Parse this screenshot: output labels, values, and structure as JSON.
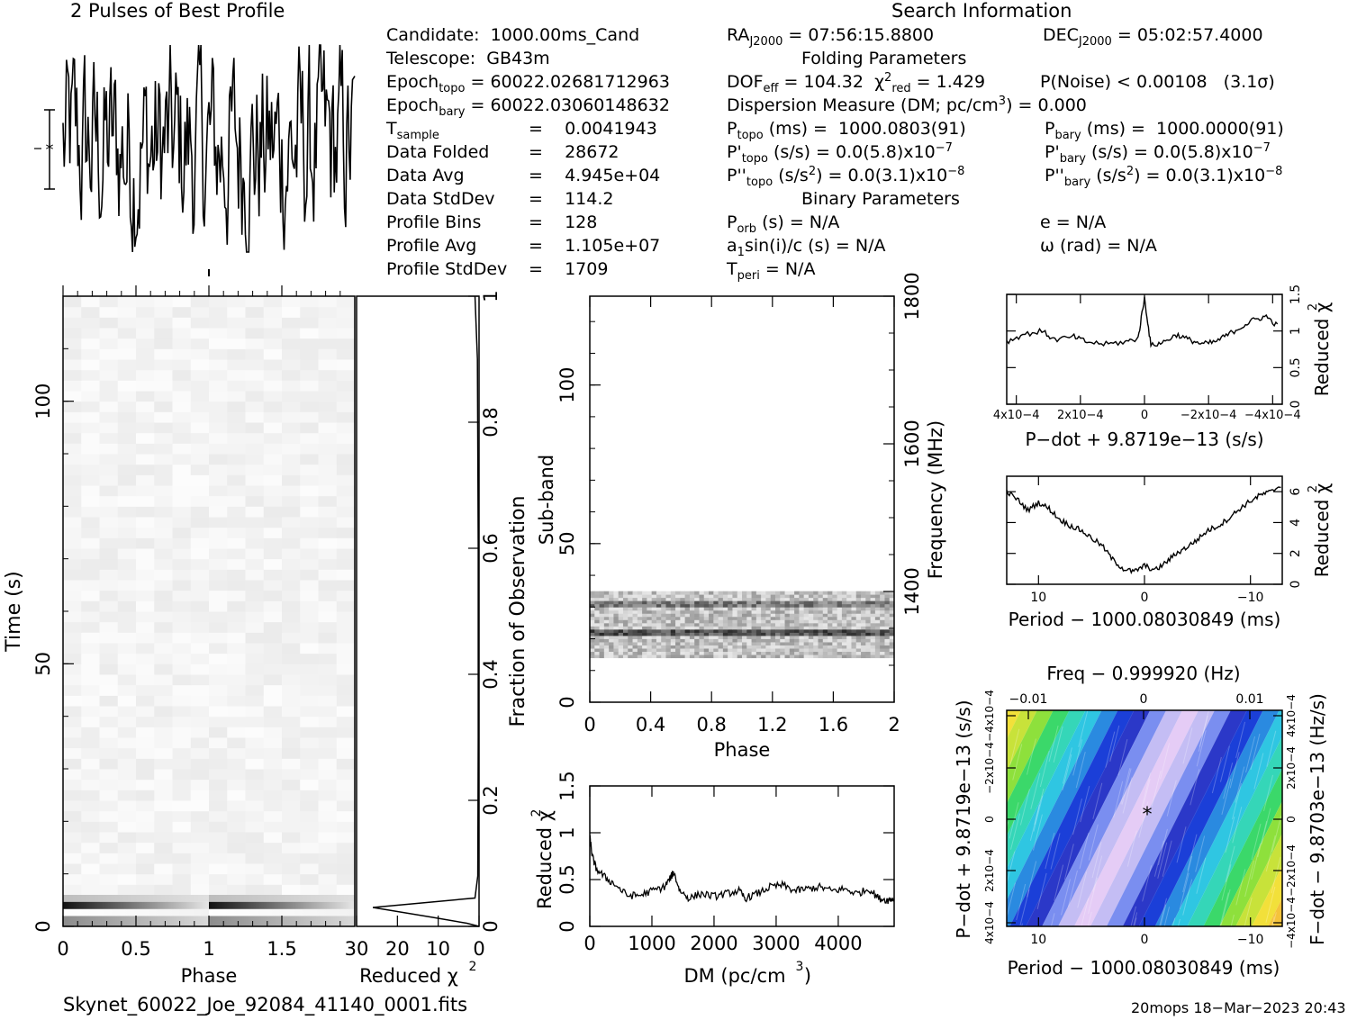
{
  "headers": {
    "best_profile": "2 Pulses of Best Profile",
    "search_information": "Search Information",
    "folding_parameters": "Folding Parameters",
    "binary_parameters": "Binary Parameters"
  },
  "candidate_info": {
    "candidate_label": "Candidate:",
    "candidate_value": "1000.00ms_Cand",
    "telescope_label": "Telescope:",
    "telescope_value": "GB43m",
    "epoch_topo_label": "Epoch",
    "epoch_topo_sub": "topo",
    "epoch_topo_value": "= 60022.02681712963",
    "epoch_bary_label": "Epoch",
    "epoch_bary_sub": "bary",
    "epoch_bary_value": "= 60022.03060148632",
    "tsample_label": "T",
    "tsample_sub": "sample",
    "tsample_value": "=    0.0041943",
    "data_folded_label": "Data Folded",
    "data_folded_value": "=    28672",
    "data_avg_label": "Data Avg",
    "data_avg_value": "=    4.945e+04",
    "data_stddev_label": "Data StdDev",
    "data_stddev_value": "=    114.2",
    "profile_bins_label": "Profile Bins",
    "profile_bins_value": "=    128",
    "profile_avg_label": "Profile Avg",
    "profile_avg_value": "=    1.105e+07",
    "profile_stddev_label": "Profile StdDev",
    "profile_stddev_value": "=    1709"
  },
  "search_info": {
    "ra_label": "RA",
    "ra_sub": "J2000",
    "ra_value": " = 07:56:15.8800",
    "dec_label": "DEC",
    "dec_sub": "J2000",
    "dec_value": " = 05:02:57.4000",
    "dof_label": "DOF",
    "dof_sub": "eff",
    "dof_value": " = 104.32",
    "chi2_label": "χ",
    "chi2_sup": "2",
    "chi2_sub": "red",
    "chi2_value": " = 1.429",
    "pnoise": "P(Noise) < 0.00108   (3.1σ)",
    "dm_line_a": "Dispersion Measure (DM; pc/cm",
    "dm_line_sup": "3",
    "dm_line_b": ") = 0.000",
    "ptopo_label": "P",
    "ptopo_sub": "topo",
    "ptopo_value": " (ms) =  1000.0803(91)",
    "pbary_label": "P",
    "pbary_sub": "bary",
    "pbary_value": " (ms) =  1000.0000(91)",
    "pdtopo_label": "P'",
    "pdtopo_sub": "topo",
    "pdtopo_value": " (s/s) = 0.0(5.8)x10",
    "pdtopo_exp": "−7",
    "pdbary_label": "P'",
    "pdbary_sub": "bary",
    "pdbary_value": " (s/s) = 0.0(5.8)x10",
    "pdbary_exp": "−7",
    "pddtopo_label": "P''",
    "pddtopo_sub": "topo",
    "pddtopo_value_a": " (s/s",
    "pddtopo_value_sup": "2",
    "pddtopo_value_b": ") = 0.0(3.1)x10",
    "pddtopo_exp": "−8",
    "pddbary_label": "P''",
    "pddbary_sub": "bary",
    "pddbary_value_a": " (s/s",
    "pddbary_value_sup": "2",
    "pddbary_value_b": ") = 0.0(3.1)x10",
    "pddbary_exp": "−8",
    "porb_label": "P",
    "porb_sub": "orb",
    "porb_value": " (s) = N/A",
    "e_value": "e = N/A",
    "asini_label": "a",
    "asini_sub": "1",
    "asini_value": "sin(i)/c (s) = N/A",
    "omega_value": "ω (rad) = N/A",
    "tperi_label": "T",
    "tperi_sub": "peri",
    "tperi_value": " = N/A"
  },
  "footer": {
    "filename": "Skynet_60022_Joe_92084_41140_0001.fits",
    "stamp": "20mops 18−Mar−2023 20:43"
  },
  "colors": {
    "ink": "#000000",
    "background": "#ffffff"
  },
  "chart_data": [
    {
      "id": "best_profile",
      "type": "line",
      "title": "2 Pulses of Best Profile",
      "xlabel": "",
      "ylabel": "",
      "pulses": 2,
      "error_bar_marker": "*",
      "note": "noisy profile, no clear pulse"
    },
    {
      "id": "time_vs_phase",
      "type": "heatmap",
      "xlabel": "Phase",
      "ylabel": "Time (s)",
      "xlim": [
        0,
        2
      ],
      "ylim": [
        0,
        120
      ],
      "x_ticks": [
        "0",
        "0.5",
        "1",
        "1.5"
      ],
      "y_ticks": [
        "0",
        "50",
        "100"
      ],
      "colormap": "grayscale",
      "signal_rows_time_s": [
        0,
        6
      ]
    },
    {
      "id": "time_reduced_chi2",
      "type": "line",
      "xlabel": "Reduced χ2",
      "ylabel": "Fraction of Observation",
      "xlim": [
        30,
        0
      ],
      "ylim": [
        0,
        1
      ],
      "x_ticks": [
        "30",
        "20",
        "10",
        "0"
      ],
      "y_ticks": [
        "0",
        "0.2",
        "0.4",
        "0.6",
        "0.8",
        "1"
      ],
      "points": [
        [
          0,
          0.0
        ],
        [
          3,
          0.005
        ],
        [
          12,
          0.015
        ],
        [
          26,
          0.03
        ],
        [
          1,
          0.045
        ],
        [
          0.3,
          0.08
        ],
        [
          0.2,
          0.3
        ],
        [
          0.2,
          0.6
        ],
        [
          0.4,
          0.9
        ],
        [
          1,
          1.0
        ]
      ]
    },
    {
      "id": "subband_vs_phase",
      "type": "heatmap",
      "xlabel": "Phase",
      "ylabel": "Sub-band",
      "y2label": "Frequency (MHz)",
      "xlim": [
        0,
        2
      ],
      "ylim": [
        0,
        128
      ],
      "x_ticks": [
        "0",
        "0.4",
        "0.8",
        "1.2",
        "1.6",
        "2"
      ],
      "y_ticks": [
        "0",
        "50",
        "100"
      ],
      "y2_ticks": [
        "1400",
        "1600",
        "1800"
      ],
      "y2lim": [
        1250,
        1800
      ],
      "colormap": "grayscale",
      "occupied_subbands": [
        14,
        35
      ]
    },
    {
      "id": "dm_chi2",
      "type": "line",
      "xlabel": "DM (pc/cm3)",
      "ylabel": "Reduced χ2",
      "xlim": [
        0,
        4900
      ],
      "ylim": [
        0,
        1.5
      ],
      "x_ticks": [
        "0",
        "1000",
        "2000",
        "3000",
        "4000"
      ],
      "y_ticks": [
        "0",
        "0.5",
        "1",
        "1.5"
      ],
      "points": [
        [
          0,
          0.95
        ],
        [
          40,
          0.75
        ],
        [
          100,
          0.62
        ],
        [
          250,
          0.52
        ],
        [
          400,
          0.45
        ],
        [
          600,
          0.33
        ],
        [
          800,
          0.33
        ],
        [
          1000,
          0.38
        ],
        [
          1200,
          0.42
        ],
        [
          1300,
          0.52
        ],
        [
          1350,
          0.58
        ],
        [
          1450,
          0.38
        ],
        [
          1600,
          0.3
        ],
        [
          1800,
          0.35
        ],
        [
          2000,
          0.32
        ],
        [
          2200,
          0.35
        ],
        [
          2400,
          0.38
        ],
        [
          2500,
          0.3
        ],
        [
          2700,
          0.35
        ],
        [
          2900,
          0.42
        ],
        [
          3100,
          0.44
        ],
        [
          3300,
          0.38
        ],
        [
          3500,
          0.4
        ],
        [
          3700,
          0.42
        ],
        [
          3900,
          0.38
        ],
        [
          4100,
          0.4
        ],
        [
          4300,
          0.35
        ],
        [
          4500,
          0.4
        ],
        [
          4650,
          0.3
        ],
        [
          4800,
          0.28
        ],
        [
          4900,
          0.3
        ]
      ]
    },
    {
      "id": "pdot_chi2",
      "type": "line",
      "xlabel": "P−dot + 9.8719e−13 (s/s)",
      "ylabel": "Reduced χ2",
      "xlim": [
        0.00043,
        -0.00043
      ],
      "ylim": [
        0,
        1.5
      ],
      "x_ticks": [
        "4x10−4",
        "2x10−4",
        "0",
        "−2x10−4",
        "−4x10−4"
      ],
      "y_ticks": [
        "0",
        "0.5",
        "1",
        "1.5"
      ],
      "points": [
        [
          0.00043,
          0.85
        ],
        [
          0.00038,
          0.95
        ],
        [
          0.00032,
          1.0
        ],
        [
          0.00028,
          0.88
        ],
        [
          0.00022,
          0.92
        ],
        [
          0.00018,
          0.85
        ],
        [
          0.00012,
          0.82
        ],
        [
          6e-05,
          0.85
        ],
        [
          2e-05,
          0.9
        ],
        [
          0.0,
          1.45
        ],
        [
          -2e-05,
          0.8
        ],
        [
          -6e-05,
          0.85
        ],
        [
          -0.0001,
          0.95
        ],
        [
          -0.00014,
          0.88
        ],
        [
          -0.00018,
          0.82
        ],
        [
          -0.00022,
          0.85
        ],
        [
          -0.00026,
          0.95
        ],
        [
          -0.0003,
          1.05
        ],
        [
          -0.00034,
          1.15
        ],
        [
          -0.00038,
          1.2
        ],
        [
          -0.00042,
          1.05
        ]
      ]
    },
    {
      "id": "period_chi2",
      "type": "line",
      "xlabel": "Period − 1000.08030849 (ms)",
      "ylabel": "Reduced χ2",
      "xlim": [
        13,
        -13
      ],
      "ylim": [
        0,
        7
      ],
      "x_ticks": [
        "10",
        "0",
        "−10"
      ],
      "y_ticks": [
        "0",
        "2",
        "4",
        "6"
      ],
      "points": [
        [
          13,
          6
        ],
        [
          12,
          5.5
        ],
        [
          11,
          4.8
        ],
        [
          10,
          5.3
        ],
        [
          9,
          4.9
        ],
        [
          8,
          4.2
        ],
        [
          7,
          3.8
        ],
        [
          6,
          3.5
        ],
        [
          5,
          3
        ],
        [
          4,
          2.5
        ],
        [
          3,
          1.6
        ],
        [
          2,
          1
        ],
        [
          1,
          0.8
        ],
        [
          0,
          1.2
        ],
        [
          -1,
          0.9
        ],
        [
          -2,
          1.4
        ],
        [
          -3,
          2
        ],
        [
          -4,
          2.4
        ],
        [
          -5,
          2.9
        ],
        [
          -6,
          3.5
        ],
        [
          -7,
          3.8
        ],
        [
          -8,
          4.3
        ],
        [
          -9,
          4.9
        ],
        [
          -10,
          5.4
        ],
        [
          -11,
          5.8
        ],
        [
          -12,
          6
        ],
        [
          -13,
          6.5
        ]
      ]
    },
    {
      "id": "period_pdot_plane",
      "type": "heatmap",
      "title": "Freq − 0.999920 (Hz)",
      "xlabel": "Period − 1000.08030849 (ms)",
      "ylabel": "P−dot + 9.8719e−13 (s/s)",
      "y2label": "F−dot − 9.8703e−13 (Hz/s)",
      "x_ticks": [
        "10",
        "0",
        "−10"
      ],
      "top_ticks": [
        "−0.01",
        "0",
        "0.01"
      ],
      "y_ticks": [
        "4x10−4",
        "2x10−4",
        "0",
        "−2x10−4",
        "−4x10−4"
      ],
      "y2_ticks": [
        "−4x10−4",
        "−2x10−4",
        "0",
        "2x10−4",
        "4x10−4"
      ],
      "xlim": [
        13,
        -13
      ],
      "best_marker": "*",
      "colormap": "rainbow"
    }
  ]
}
